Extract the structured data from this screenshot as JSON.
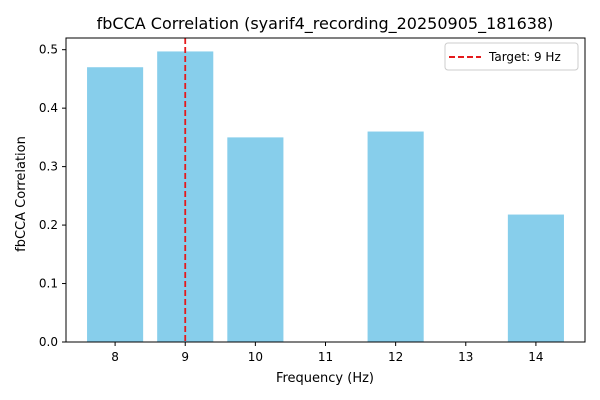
{
  "chart_data": {
    "type": "bar",
    "title": "fbCCA Correlation (syarif4_recording_20250905_181638)",
    "xlabel": "Frequency (Hz)",
    "ylabel": "fbCCA Correlation",
    "categories": [
      "8",
      "9",
      "10",
      "11",
      "12",
      "13",
      "14"
    ],
    "x": [
      8,
      9,
      10,
      11,
      12,
      13,
      14
    ],
    "values": [
      0.47,
      0.497,
      0.35,
      0.0,
      0.36,
      0.0,
      0.218
    ],
    "xlim": [
      7.3,
      14.7
    ],
    "ylim": [
      0,
      0.52
    ],
    "yticks": [
      0.0,
      0.1,
      0.2,
      0.3,
      0.4,
      0.5
    ],
    "ytick_labels": [
      "0.0",
      "0.1",
      "0.2",
      "0.3",
      "0.4",
      "0.5"
    ],
    "bar_color": "#87CEEB",
    "target": {
      "x": 9,
      "label": "Target: 9 Hz",
      "color": "#E41A1C",
      "style": "dashed"
    },
    "legend_position": "top-right",
    "grid": false
  }
}
